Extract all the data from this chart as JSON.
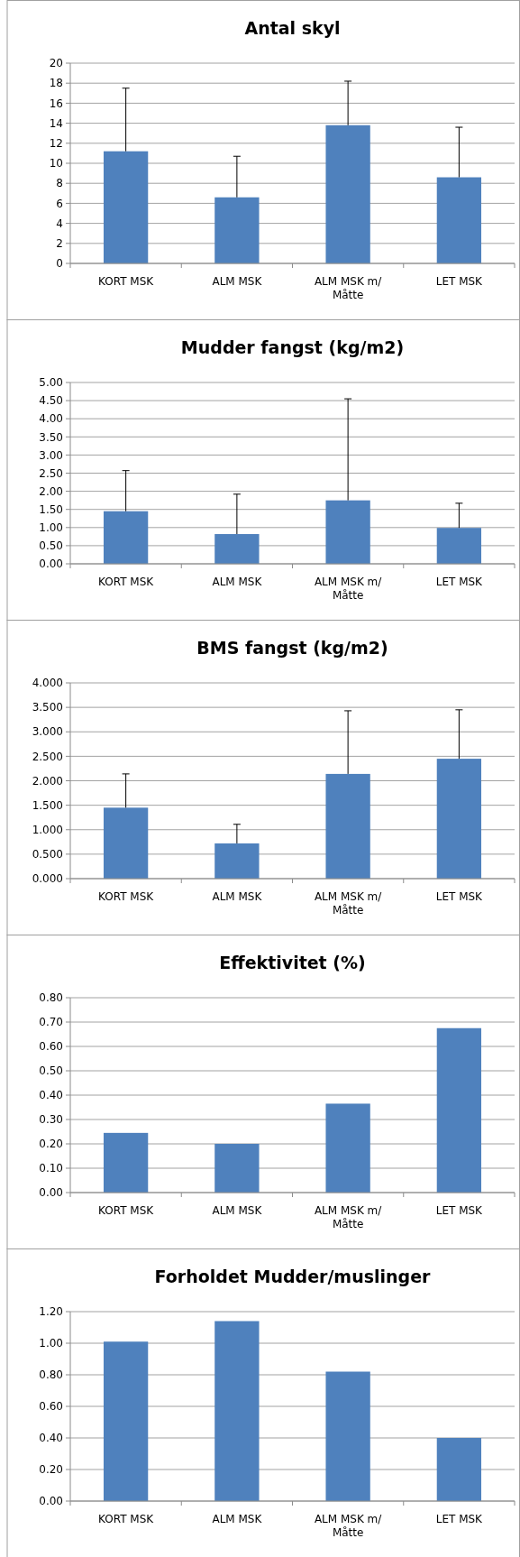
{
  "chart_data": [
    {
      "type": "bar",
      "title": "Antal skyl",
      "categories": [
        "KORT MSK",
        "ALM MSK",
        "ALM MSK m/ Måtte",
        "LET MSK"
      ],
      "values": [
        11.2,
        6.6,
        13.8,
        8.6
      ],
      "errors": [
        [
          11.2,
          17.5
        ],
        [
          6.6,
          10.7
        ],
        [
          13.8,
          18.2
        ],
        [
          8.6,
          13.6
        ]
      ],
      "color": "#4f81bd",
      "ylim": [
        0,
        20
      ],
      "yticks": [
        0,
        2,
        4,
        6,
        8,
        10,
        12,
        14,
        16,
        18,
        20
      ],
      "grid": "y"
    },
    {
      "type": "bar",
      "title": "Mudder fangst (kg/m2)",
      "categories": [
        "KORT MSK",
        "ALM MSK",
        "ALM MSK m/ Måtte",
        "LET MSK"
      ],
      "values": [
        1.45,
        0.82,
        1.75,
        0.99
      ],
      "errors": [
        [
          1.45,
          2.57
        ],
        [
          0.82,
          1.92
        ],
        [
          1.75,
          4.55
        ],
        [
          0.99,
          1.67
        ]
      ],
      "color": "#4f81bd",
      "ylim": [
        0,
        5
      ],
      "yticks": [
        {
          "value": 0,
          "label": "0.00"
        },
        {
          "value": 0.5,
          "label": "0.50"
        },
        {
          "value": 1,
          "label": "1.00"
        },
        {
          "value": 1.5,
          "label": "1.50"
        },
        {
          "value": 2,
          "label": "2.00"
        },
        {
          "value": 2.5,
          "label": "2.50"
        },
        {
          "value": 3,
          "label": "3.00"
        },
        {
          "value": 3.5,
          "label": "3.50"
        },
        {
          "value": 4,
          "label": "4.00"
        },
        {
          "value": 4.5,
          "label": "4.50"
        },
        {
          "value": 5,
          "label": "5.00"
        }
      ],
      "grid": "y"
    },
    {
      "type": "bar",
      "title": "BMS fangst (kg/m2)",
      "categories": [
        "KORT MSK",
        "ALM MSK",
        "ALM MSK m/ Måtte",
        "LET MSK"
      ],
      "values": [
        1.45,
        0.72,
        2.14,
        2.45
      ],
      "errors": [
        [
          1.45,
          2.14
        ],
        [
          0.72,
          1.11
        ],
        [
          2.14,
          3.43
        ],
        [
          2.45,
          3.45
        ]
      ],
      "color": "#4f81bd",
      "ylim": [
        0,
        4
      ],
      "yticks": [
        {
          "value": 0,
          "label": "0.000"
        },
        {
          "value": 0.5,
          "label": "0.500"
        },
        {
          "value": 1,
          "label": "1.000"
        },
        {
          "value": 1.5,
          "label": "1.500"
        },
        {
          "value": 2,
          "label": "2.000"
        },
        {
          "value": 2.5,
          "label": "2.500"
        },
        {
          "value": 3,
          "label": "3.000"
        },
        {
          "value": 3.5,
          "label": "3.500"
        },
        {
          "value": 4,
          "label": "4.000"
        }
      ],
      "grid": "y"
    },
    {
      "type": "bar",
      "title": "Effektivitet (%)",
      "categories": [
        "KORT MSK",
        "ALM MSK",
        "ALM MSK m/ Måtte",
        "LET MSK"
      ],
      "values": [
        0.245,
        0.2,
        0.365,
        0.675
      ],
      "color": "#4f81bd",
      "ylim": [
        0,
        0.8
      ],
      "yticks": [
        {
          "value": 0,
          "label": "0.00"
        },
        {
          "value": 0.1,
          "label": "0.10"
        },
        {
          "value": 0.2,
          "label": "0.20"
        },
        {
          "value": 0.3,
          "label": "0.30"
        },
        {
          "value": 0.4,
          "label": "0.40"
        },
        {
          "value": 0.5,
          "label": "0.50"
        },
        {
          "value": 0.6,
          "label": "0.60"
        },
        {
          "value": 0.7,
          "label": "0.70"
        },
        {
          "value": 0.8,
          "label": "0.80"
        }
      ],
      "grid": "y"
    },
    {
      "type": "bar",
      "title": "Forholdet Mudder/muslinger",
      "categories": [
        "KORT MSK",
        "ALM MSK",
        "ALM MSK m/ Måtte",
        "LET MSK"
      ],
      "values": [
        1.01,
        1.14,
        0.82,
        0.4
      ],
      "color": "#4f81bd",
      "ylim": [
        0,
        1.2
      ],
      "yticks": [
        {
          "value": 0,
          "label": "0.00"
        },
        {
          "value": 0.2,
          "label": "0.20"
        },
        {
          "value": 0.4,
          "label": "0.40"
        },
        {
          "value": 0.6,
          "label": "0.60"
        },
        {
          "value": 0.8,
          "label": "0.80"
        },
        {
          "value": 1,
          "label": "1.00"
        },
        {
          "value": 1.2,
          "label": "1.20"
        }
      ],
      "grid": "y"
    }
  ]
}
